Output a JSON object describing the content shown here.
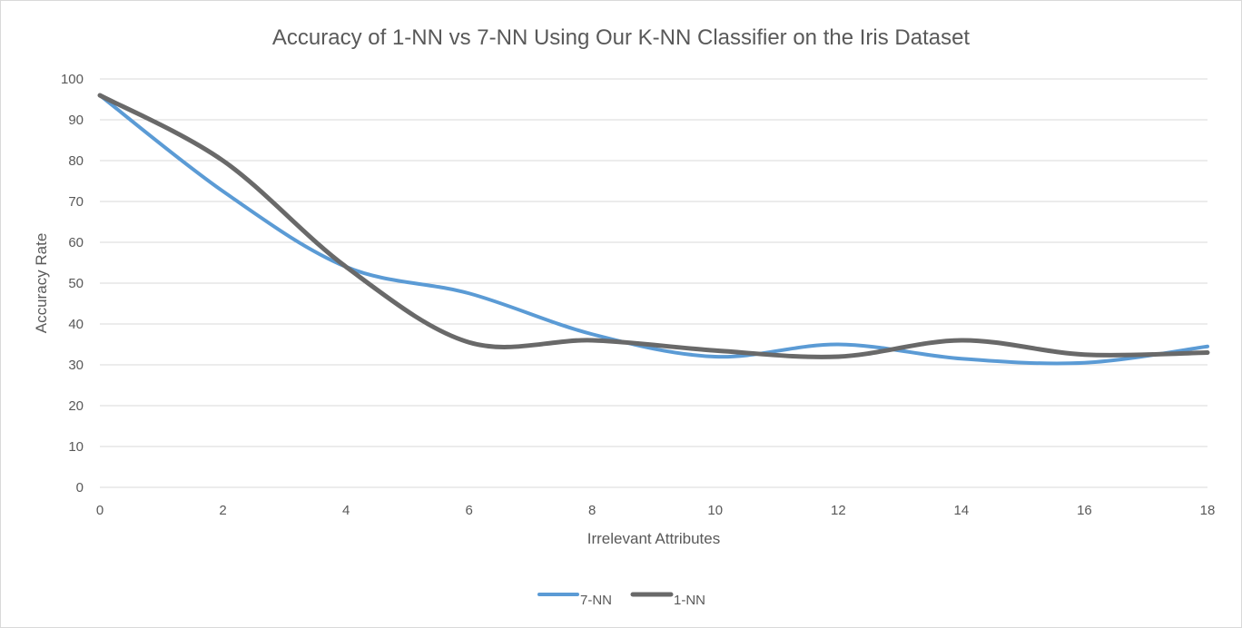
{
  "chart_data": {
    "type": "line",
    "title": "Accuracy of 1-NN vs 7-NN Using Our K-NN Classifier on the Iris Dataset",
    "xlabel": "Irrelevant Attributes",
    "ylabel": "Accuracy Rate",
    "xlim": [
      0,
      18
    ],
    "ylim": [
      0,
      100
    ],
    "x_ticks": [
      0,
      2,
      4,
      6,
      8,
      10,
      12,
      14,
      16,
      18
    ],
    "y_ticks": [
      0,
      10,
      20,
      30,
      40,
      50,
      60,
      70,
      80,
      90,
      100
    ],
    "grid": true,
    "smooth": true,
    "legend_position": "bottom",
    "x": [
      0,
      2,
      4,
      6,
      8,
      10,
      12,
      14,
      16,
      18
    ],
    "series": [
      {
        "name": "7-NN",
        "color": "#5b9bd5",
        "values": [
          96,
          72.5,
          54,
          47.5,
          37.5,
          32,
          35,
          31.5,
          30.5,
          34.5
        ]
      },
      {
        "name": "1-NN",
        "color": "#696969",
        "values": [
          96,
          80,
          54,
          35.5,
          36,
          33.5,
          32,
          36,
          32.5,
          33
        ]
      }
    ]
  }
}
